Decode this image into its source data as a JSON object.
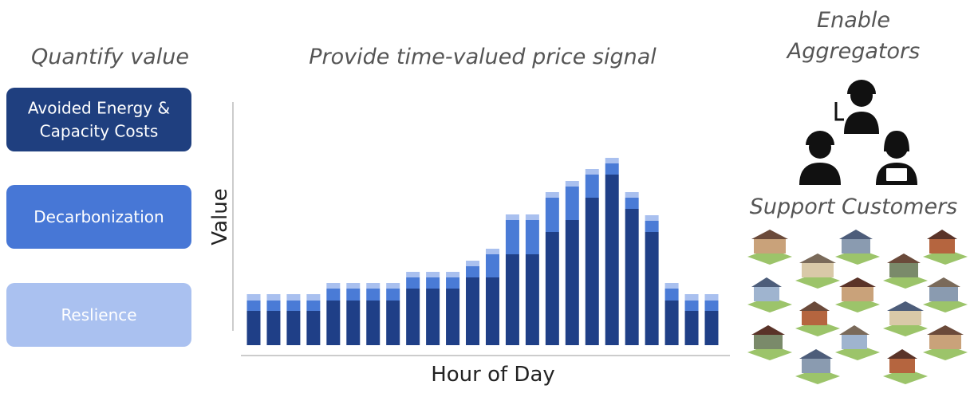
{
  "left": {
    "title": "Quantify value",
    "boxes": [
      {
        "lines": [
          "Avoided Energy &",
          "Capacity Costs"
        ],
        "color": "#1f3f7f"
      },
      {
        "lines": [
          "Decarbonization"
        ],
        "color": "#4777d6"
      },
      {
        "lines": [
          "Reslience"
        ],
        "color": "#aac1f0"
      }
    ]
  },
  "right": {
    "title_lines": [
      "Enable",
      "Aggregators"
    ],
    "subtitle": "Support Customers"
  },
  "chart_data": {
    "type": "stacked-bar",
    "title": "Provide time-valued price signal",
    "y_label": "Value",
    "x_label": "Hour of Day",
    "categories": [
      null,
      null,
      null,
      null,
      null,
      null,
      null,
      null,
      null,
      null,
      null,
      null,
      null,
      null,
      null,
      null,
      null,
      null,
      null,
      null,
      null,
      null,
      null,
      null
    ],
    "ylim": [
      0,
      305
    ],
    "series": [
      {
        "color": "#1f3f87",
        "values": [
          43,
          43,
          43,
          43,
          56,
          56,
          56,
          56,
          71,
          71,
          71,
          85,
          85,
          114,
          114,
          142,
          157,
          185,
          214,
          171,
          142,
          56,
          43,
          43
        ]
      },
      {
        "color": "#4a7bd6",
        "values": [
          13,
          13,
          13,
          13,
          15,
          15,
          15,
          15,
          14,
          14,
          14,
          14,
          29,
          43,
          43,
          43,
          42,
          29,
          14,
          14,
          14,
          15,
          13,
          13
        ]
      },
      {
        "color": "#a9c0ef",
        "values": [
          8,
          8,
          8,
          8,
          7,
          7,
          7,
          7,
          7,
          7,
          7,
          7,
          7,
          7,
          7,
          7,
          7,
          7,
          7,
          7,
          7,
          7,
          8,
          8
        ]
      }
    ]
  }
}
